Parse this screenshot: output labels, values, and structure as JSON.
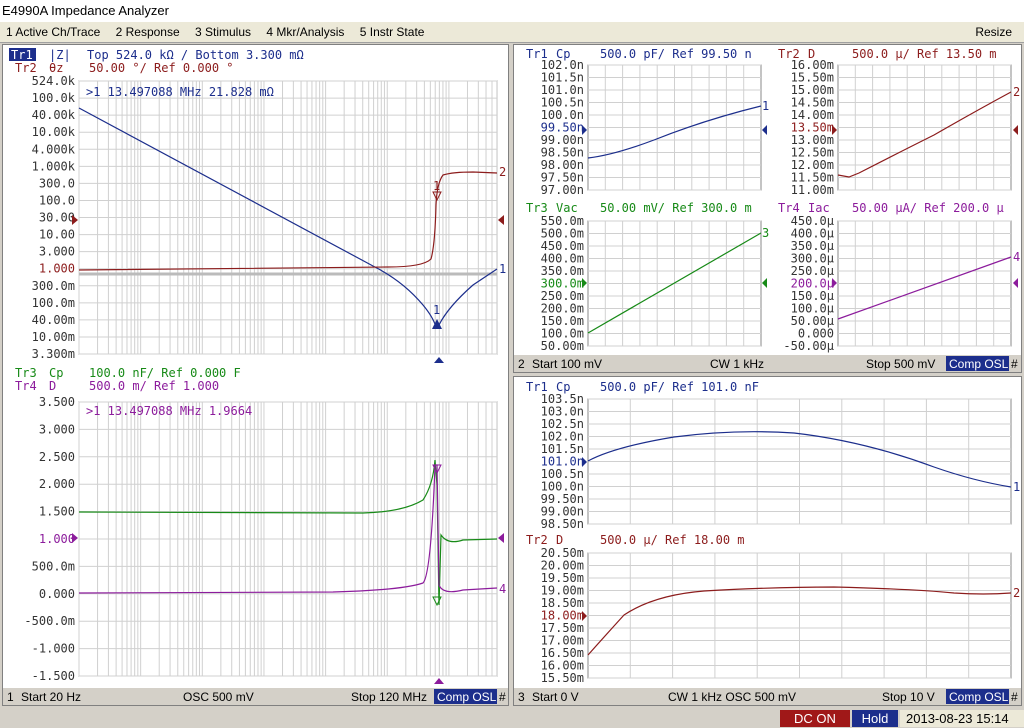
{
  "window": {
    "title": "E4990A Impedance Analyzer"
  },
  "menu": {
    "items": [
      "1 Active Ch/Trace",
      "2 Response",
      "3 Stimulus",
      "4 Mkr/Analysis",
      "5 Instr State"
    ],
    "resize": "Resize"
  },
  "colors": {
    "tr1": "#1c2e8c",
    "tr2": "#8c1c1c",
    "tr3": "#178a17",
    "tr4": "#8c1c9c",
    "grid": "#c8c8c8"
  },
  "ch1": {
    "tr1_name": "Tr1",
    "tr1_param": "|Z|",
    "tr1_scale": "Top 524.0 kΩ / Bottom 3.300 mΩ",
    "tr2_name": "Tr2",
    "tr2_param": "θz",
    "tr2_scale": "50.00 °/ Ref 0.000 °",
    "top_ticks": [
      "524.0k",
      "100.0k",
      "40.00k",
      "10.00k",
      "4.000k",
      "1.000k",
      "300.0",
      "100.0",
      "30.00",
      "10.00",
      "3.000",
      "1.000",
      "300.0m",
      "100.0m",
      "40.00m",
      "10.00m",
      "3.300m"
    ],
    "top_marker": ">1 13.497088 MHz   21.828 mΩ",
    "tr3_name": "Tr3",
    "tr3_param": "Cp",
    "tr3_scale": "100.0 nF/ Ref 0.000 F",
    "tr4_name": "Tr4",
    "tr4_param": "D",
    "tr4_scale": "500.0 m/ Ref 1.000",
    "bottom_ticks": [
      "3.500",
      "3.000",
      "2.500",
      "2.000",
      "1.500",
      "1.000",
      "500.0m",
      "0.000",
      "-500.0m",
      "-1.000",
      "-1.500"
    ],
    "bottom_marker": ">1 13.497088 MHz   1.9664",
    "status": {
      "num": "1",
      "start": "Start 20 Hz",
      "mid": "OSC 500 mV",
      "stop": "Stop 120 MHz",
      "cal": "Comp OSL",
      "hash": "#"
    }
  },
  "ch2": {
    "q1": {
      "name": "Tr1",
      "param": "Cp",
      "scale": "500.0 pF/ Ref 99.50 n",
      "ticks": [
        "102.0n",
        "101.5n",
        "101.0n",
        "100.5n",
        "100.0n",
        "99.50n",
        "99.00n",
        "98.50n",
        "98.00n",
        "97.50n",
        "97.00n"
      ]
    },
    "q2": {
      "name": "Tr2",
      "param": "D",
      "scale": "500.0 μ/ Ref 13.50 m",
      "ticks": [
        "16.00m",
        "15.50m",
        "15.00m",
        "14.50m",
        "14.00m",
        "13.50m",
        "13.00m",
        "12.50m",
        "12.00m",
        "11.50m",
        "11.00m"
      ]
    },
    "q3": {
      "name": "Tr3",
      "param": "Vac",
      "scale": "50.00 mV/ Ref 300.0 m",
      "ticks": [
        "550.0m",
        "500.0m",
        "450.0m",
        "400.0m",
        "350.0m",
        "300.0m",
        "250.0m",
        "200.0m",
        "150.0m",
        "100.0m",
        "50.00m"
      ]
    },
    "q4": {
      "name": "Tr4",
      "param": "Iac",
      "scale": "50.00 μA/ Ref 200.0 μ",
      "ticks": [
        "450.0μ",
        "400.0μ",
        "350.0μ",
        "300.0μ",
        "250.0μ",
        "200.0μ",
        "150.0μ",
        "100.0μ",
        "50.00μ",
        "0.000",
        "-50.00μ"
      ]
    },
    "status": {
      "num": "2",
      "start": "Start 100 mV",
      "mid": "CW 1 kHz",
      "stop": "Stop 500 mV",
      "cal": "Comp OSL",
      "hash": "#"
    }
  },
  "ch3": {
    "top": {
      "name": "Tr1",
      "param": "Cp",
      "scale": "500.0 pF/ Ref 101.0 nF",
      "ticks": [
        "103.5n",
        "103.0n",
        "102.5n",
        "102.0n",
        "101.5n",
        "101.0n",
        "100.5n",
        "100.0n",
        "99.50n",
        "99.00n",
        "98.50n"
      ]
    },
    "bottom": {
      "name": "Tr2",
      "param": "D",
      "scale": "500.0 μ/ Ref 18.00 m",
      "ticks": [
        "20.50m",
        "20.00m",
        "19.50m",
        "19.00m",
        "18.50m",
        "18.00m",
        "17.50m",
        "17.00m",
        "16.50m",
        "16.00m",
        "15.50m"
      ]
    },
    "status": {
      "num": "3",
      "start": "Start 0 V",
      "mid": "CW 1 kHz  OSC 500 mV",
      "stop": "Stop 10 V",
      "cal": "Comp OSL",
      "hash": "#"
    }
  },
  "marker_labels": {
    "m1": "1",
    "t1": "1",
    "t2": "2",
    "t3": "3",
    "t4": "4"
  },
  "bottom_status": {
    "dc": "DC ON",
    "hold": "Hold",
    "datetime": "2013-08-23 15:14"
  }
}
